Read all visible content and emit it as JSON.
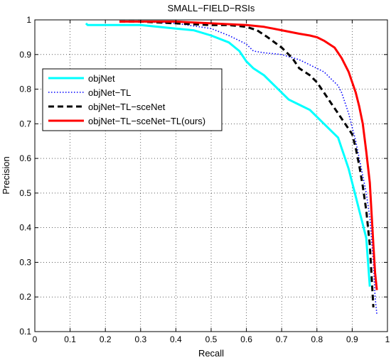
{
  "chart_data": {
    "type": "line",
    "title": "SMALL−FIELD−RSIs",
    "xlabel": "Recall",
    "ylabel": "Precision",
    "xlim": [
      0,
      1
    ],
    "ylim": [
      0.1,
      1
    ],
    "xticks": [
      "0",
      "0.1",
      "0.2",
      "0.3",
      "0.4",
      "0.5",
      "0.6",
      "0.7",
      "0.8",
      "0.9",
      "1"
    ],
    "yticks": [
      "0.1",
      "0.2",
      "0.3",
      "0.4",
      "0.5",
      "0.6",
      "0.7",
      "0.8",
      "0.9",
      "1"
    ],
    "grid": true,
    "legend_position": "upper-left",
    "series": [
      {
        "name": "objNet",
        "color": "#00ffff",
        "style": "solid",
        "x": [
          0.145,
          0.15,
          0.2,
          0.3,
          0.35,
          0.4,
          0.45,
          0.5,
          0.55,
          0.58,
          0.6,
          0.62,
          0.65,
          0.68,
          0.7,
          0.72,
          0.75,
          0.78,
          0.8,
          0.82,
          0.84,
          0.86,
          0.87,
          0.88,
          0.89,
          0.9,
          0.91,
          0.92,
          0.93,
          0.94,
          0.945,
          0.95
        ],
        "y": [
          0.99,
          0.985,
          0.985,
          0.985,
          0.98,
          0.975,
          0.97,
          0.955,
          0.935,
          0.91,
          0.88,
          0.86,
          0.84,
          0.81,
          0.79,
          0.77,
          0.755,
          0.74,
          0.72,
          0.7,
          0.68,
          0.66,
          0.63,
          0.6,
          0.57,
          0.53,
          0.49,
          0.45,
          0.41,
          0.37,
          0.3,
          0.23
        ]
      },
      {
        "name": "objNet−TL",
        "color": "#0000ff",
        "style": "dotted",
        "x": [
          0.24,
          0.3,
          0.4,
          0.5,
          0.55,
          0.6,
          0.62,
          0.65,
          0.7,
          0.75,
          0.78,
          0.8,
          0.82,
          0.84,
          0.86,
          0.87,
          0.88,
          0.89,
          0.9,
          0.91,
          0.92,
          0.93,
          0.94,
          0.95,
          0.96,
          0.965,
          0.97
        ],
        "y": [
          0.995,
          0.995,
          0.99,
          0.975,
          0.955,
          0.93,
          0.91,
          0.905,
          0.9,
          0.885,
          0.87,
          0.86,
          0.85,
          0.83,
          0.81,
          0.79,
          0.76,
          0.73,
          0.69,
          0.65,
          0.6,
          0.55,
          0.5,
          0.43,
          0.3,
          0.2,
          0.15
        ]
      },
      {
        "name": "objNet−TL−sceNet",
        "color": "#000000",
        "style": "dashed",
        "x": [
          0.24,
          0.3,
          0.4,
          0.5,
          0.55,
          0.6,
          0.63,
          0.66,
          0.7,
          0.73,
          0.75,
          0.78,
          0.8,
          0.82,
          0.84,
          0.86,
          0.88,
          0.9,
          0.91,
          0.92,
          0.93,
          0.94,
          0.95,
          0.96
        ],
        "y": [
          0.995,
          0.995,
          0.99,
          0.985,
          0.985,
          0.98,
          0.97,
          0.95,
          0.92,
          0.89,
          0.86,
          0.84,
          0.82,
          0.79,
          0.76,
          0.73,
          0.7,
          0.67,
          0.63,
          0.58,
          0.52,
          0.45,
          0.35,
          0.17
        ]
      },
      {
        "name": "objNet−TL−sceNet−TL(ours)",
        "color": "#ff0000",
        "style": "solid",
        "x": [
          0.24,
          0.3,
          0.4,
          0.5,
          0.6,
          0.65,
          0.7,
          0.75,
          0.78,
          0.8,
          0.82,
          0.85,
          0.87,
          0.89,
          0.9,
          0.91,
          0.92,
          0.93,
          0.94,
          0.95,
          0.96,
          0.965,
          0.97
        ],
        "y": [
          0.995,
          0.995,
          0.995,
          0.99,
          0.985,
          0.98,
          0.97,
          0.96,
          0.955,
          0.95,
          0.94,
          0.92,
          0.89,
          0.85,
          0.82,
          0.79,
          0.75,
          0.7,
          0.62,
          0.53,
          0.35,
          0.27,
          0.22
        ]
      }
    ]
  }
}
